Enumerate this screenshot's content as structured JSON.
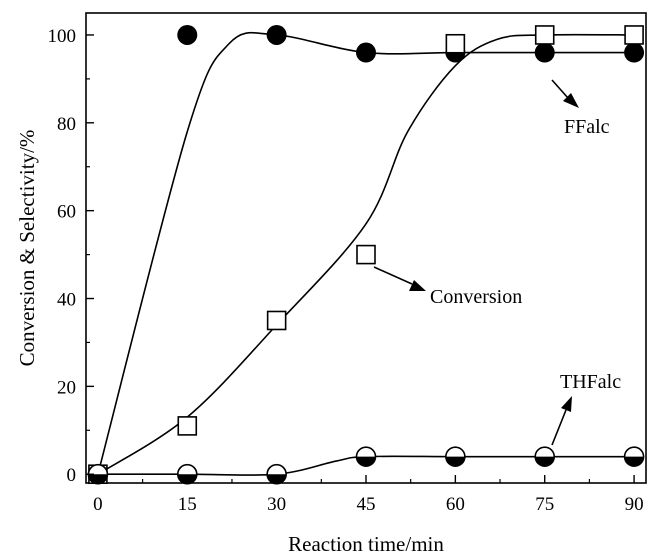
{
  "chart_data": {
    "type": "scatter",
    "title": "",
    "xlabel": "Reaction time/min",
    "ylabel": "Conversion & Selectivity/%",
    "xlim": [
      -2,
      92
    ],
    "ylim": [
      -2,
      105
    ],
    "xticks": [
      0,
      15,
      30,
      45,
      60,
      75,
      90
    ],
    "yticks": [
      0,
      20,
      40,
      60,
      80,
      100
    ],
    "grid": false,
    "series": [
      {
        "name": "FFalc",
        "marker": "filled-circle",
        "x": [
          15,
          30,
          45,
          60,
          75,
          90
        ],
        "y": [
          100,
          100,
          96,
          96,
          96,
          96
        ],
        "curve_x": [
          0,
          15,
          22,
          30,
          45,
          60,
          75,
          90
        ],
        "curve_y": [
          0,
          78,
          98,
          100,
          96,
          96,
          96,
          96
        ]
      },
      {
        "name": "Conversion",
        "marker": "open-square",
        "x": [
          0,
          15,
          30,
          45,
          60,
          75,
          90
        ],
        "y": [
          0,
          11,
          35,
          50,
          98,
          100,
          100
        ],
        "curve_x": [
          0,
          15,
          30,
          45,
          52,
          60,
          67,
          75,
          90
        ],
        "curve_y": [
          0,
          13,
          34,
          57,
          78,
          93,
          99,
          100,
          100
        ]
      },
      {
        "name": "THFalc",
        "marker": "half-filled-circle",
        "x": [
          0,
          15,
          30,
          45,
          60,
          75,
          90
        ],
        "y": [
          0,
          0,
          0,
          4,
          4,
          4,
          4
        ],
        "curve_x": [
          0,
          15,
          30,
          40,
          45,
          60,
          75,
          90
        ],
        "curve_y": [
          0,
          0,
          0,
          3,
          4,
          4,
          4,
          4
        ]
      }
    ],
    "annotations": [
      {
        "text": "FFalc",
        "series": "FFalc"
      },
      {
        "text": "Conversion",
        "series": "Conversion"
      },
      {
        "text": "THFalc",
        "series": "THFalc"
      }
    ]
  }
}
